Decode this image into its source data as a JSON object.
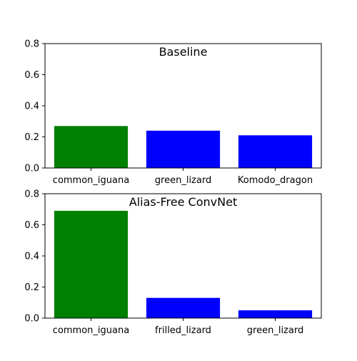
{
  "chart_data": [
    {
      "type": "bar",
      "title": "Baseline",
      "categories": [
        "common_iguana",
        "green_lizard",
        "Komodo_dragon"
      ],
      "values": [
        0.27,
        0.24,
        0.21
      ],
      "colors": [
        "#008000",
        "#0000ff",
        "#0000ff"
      ],
      "ylim": [
        0,
        0.8
      ],
      "yticks": [
        "0.0",
        "0.2",
        "0.4",
        "0.6",
        "0.8"
      ],
      "xlabel": "",
      "ylabel": "",
      "grid": false
    },
    {
      "type": "bar",
      "title": "Alias-Free ConvNet",
      "categories": [
        "common_iguana",
        "frilled_lizard",
        "green_lizard"
      ],
      "values": [
        0.69,
        0.13,
        0.05
      ],
      "colors": [
        "#008000",
        "#0000ff",
        "#0000ff"
      ],
      "ylim": [
        0,
        0.8
      ],
      "yticks": [
        "0.0",
        "0.2",
        "0.4",
        "0.6",
        "0.8"
      ],
      "xlabel": "",
      "ylabel": "",
      "grid": false
    }
  ]
}
